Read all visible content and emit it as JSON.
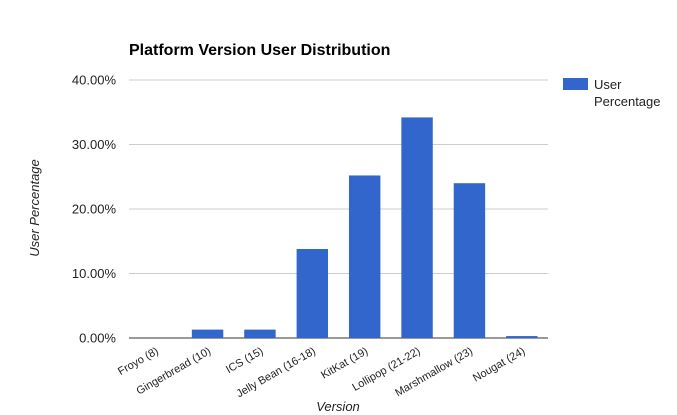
{
  "chart_data": {
    "type": "bar",
    "title": "Platform Version User Distribution",
    "xlabel": "Version",
    "ylabel": "User Percentage",
    "categories": [
      "Froyo (8)",
      "Gingerbread (10)",
      "ICS (15)",
      "Jelly Bean (16-18)",
      "KitKat (19)",
      "Lollipop (21-22)",
      "Marshmallow (23)",
      "Nougat (24)"
    ],
    "series": [
      {
        "name": "User Percentage",
        "legend_lines": [
          "User",
          "Percentage"
        ],
        "color": "#3366cc",
        "values": [
          0.0,
          1.3,
          1.3,
          13.8,
          25.2,
          34.2,
          24.0,
          0.3
        ]
      }
    ],
    "ylim": [
      0,
      40
    ],
    "yticks": [
      0,
      10,
      20,
      30,
      40
    ],
    "ytick_labels": [
      "0.00%",
      "10.00%",
      "20.00%",
      "30.00%",
      "40.00%"
    ],
    "grid": true,
    "legend_position": "right",
    "colors": {
      "bar": "#3366cc",
      "grid": "#cccccc",
      "axis": "#333333"
    }
  }
}
